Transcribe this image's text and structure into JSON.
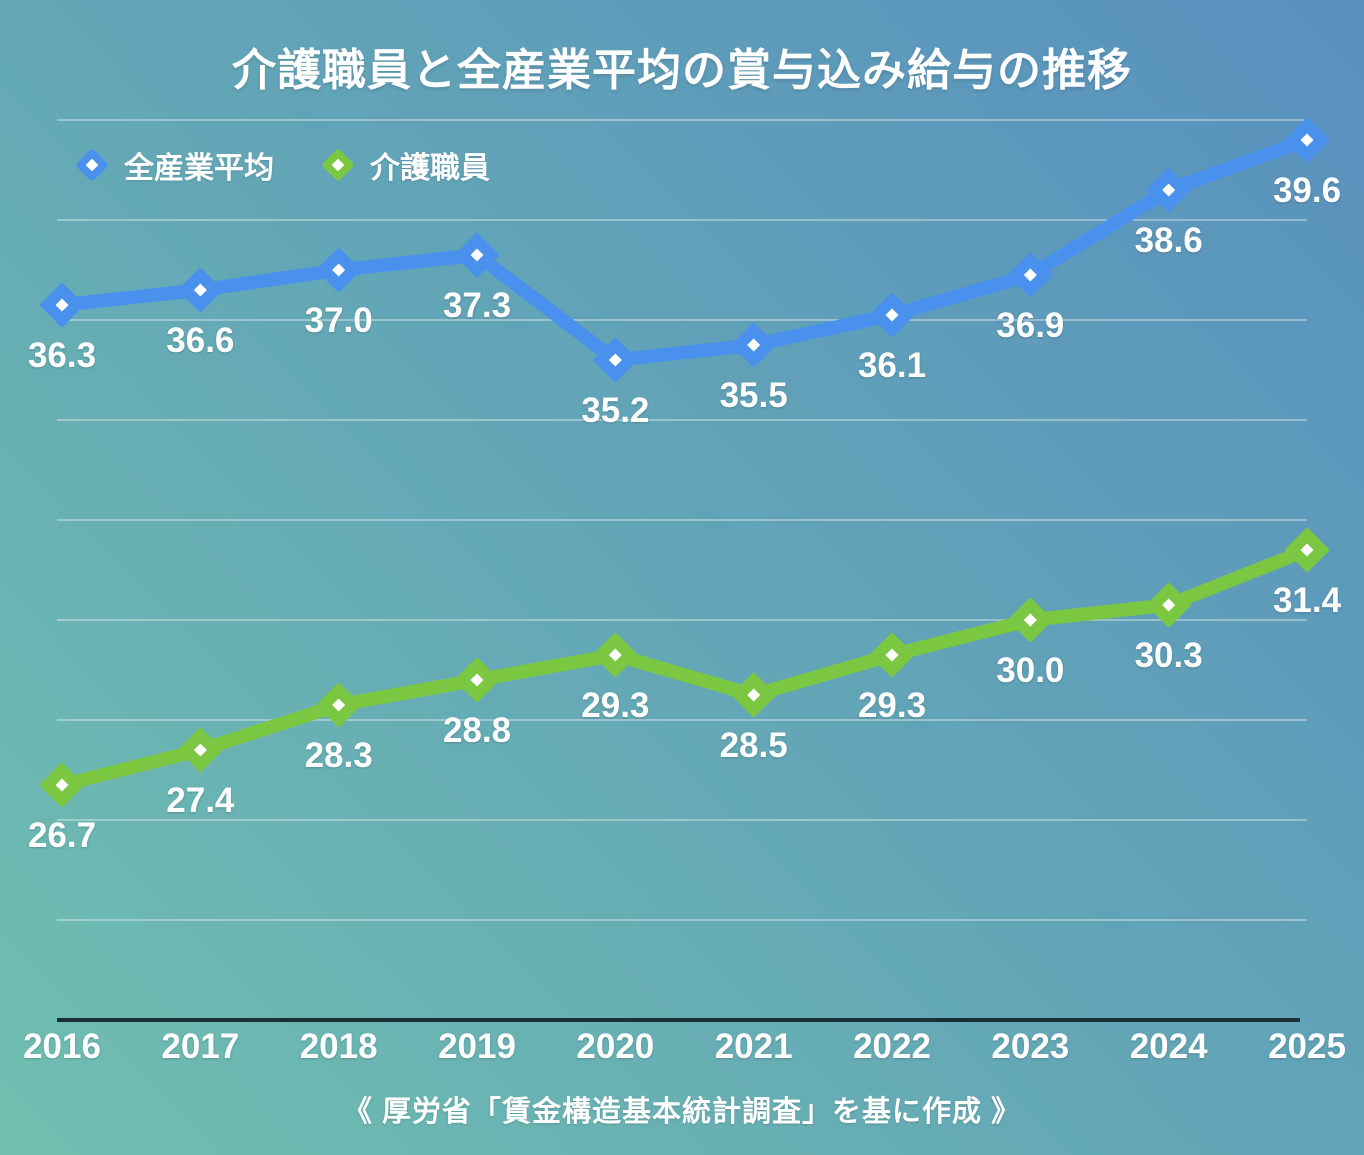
{
  "title": "介護職員と全産業平均の賞与込み給与の推移",
  "source_note": "《 厚労省「賃金構造基本統計調査」を基に作成 》",
  "colors": {
    "background_from": "#70bfb0",
    "background_to": "#5890be",
    "all_industry_blue": "#4a91ee",
    "care_worker_green": "#7cc742",
    "grid_line": "rgba(235,238,238,0.55)",
    "axis_line": "#1d2f36",
    "text": "#ffffff"
  },
  "chart_data": {
    "type": "line",
    "categories": [
      "2016",
      "2017",
      "2018",
      "2019",
      "2020",
      "2021",
      "2022",
      "2023",
      "2024",
      "2025"
    ],
    "series": [
      {
        "id": "all-industry-average",
        "name": "全産業平均",
        "color": "#4a91ee",
        "values": [
          36.3,
          36.6,
          37.0,
          37.3,
          35.2,
          35.5,
          36.1,
          36.9,
          38.6,
          39.6
        ]
      },
      {
        "id": "care-workers",
        "name": "介護職員",
        "color": "#7cc742",
        "values": [
          26.7,
          27.4,
          28.3,
          28.8,
          29.3,
          28.5,
          29.3,
          30.0,
          30.3,
          31.4
        ]
      }
    ],
    "ylim": [
      22,
      40
    ],
    "grid_step": 2,
    "grid": true,
    "legend_position": "top-left",
    "marker": "diamond",
    "data_labels": true,
    "data_label_decimals": 1
  }
}
